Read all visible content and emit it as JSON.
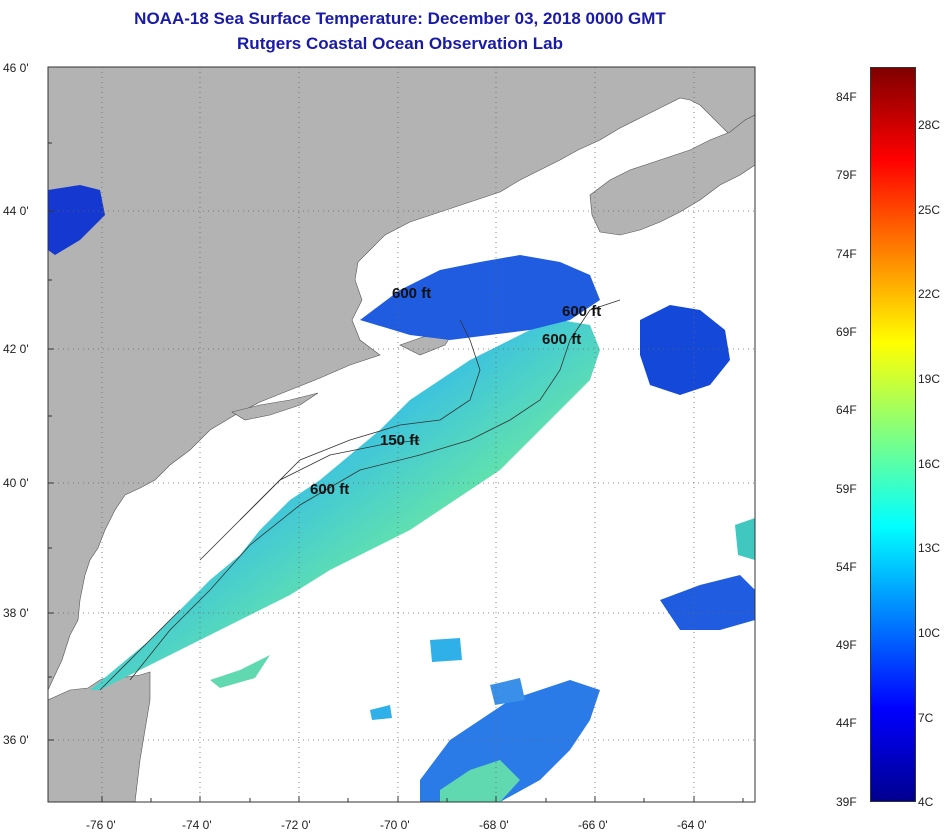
{
  "title_line1": "NOAA-18 Sea Surface Temperature:  December 03, 2018 0000 GMT",
  "title_line2": "Rutgers Coastal Ocean Observation Lab",
  "lat_labels": [
    "46 0'",
    "44 0'",
    "42 0'",
    "40 0'",
    "38 0'",
    "36 0'"
  ],
  "lon_labels": [
    "-76 0'",
    "-74 0'",
    "-72 0'",
    "-70 0'",
    "-68 0'",
    "-66 0'",
    "-64 0'"
  ],
  "contour_labels": [
    "600 ft",
    "600 ft",
    "600 ft",
    "150 ft",
    "600 ft"
  ],
  "colorbar": {
    "fahrenheit": [
      "84F",
      "79F",
      "74F",
      "69F",
      "64F",
      "59F",
      "54F",
      "49F",
      "44F",
      "39F"
    ],
    "celsius": [
      "28C",
      "25C",
      "22C",
      "19C",
      "16C",
      "13C",
      "10C",
      "7C",
      "4C"
    ],
    "colors": [
      "#7f0000",
      "#ff0000",
      "#ff8000",
      "#ffff00",
      "#80ff80",
      "#00ffff",
      "#0080ff",
      "#0000ff",
      "#00008f"
    ]
  },
  "colors": {
    "land": "#b3b3b3",
    "no_data": "#ffffff",
    "title": "#1a1aa8"
  }
}
